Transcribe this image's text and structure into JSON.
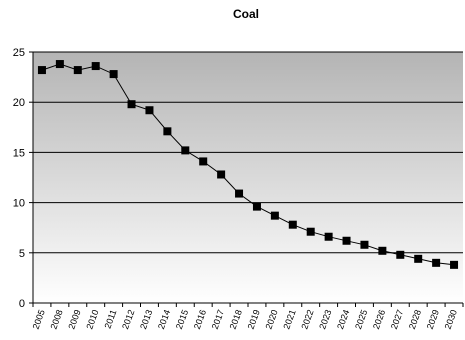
{
  "chart_data": {
    "type": "line",
    "title": "Coal",
    "xlabel": "",
    "ylabel": "",
    "ylim": [
      0,
      25
    ],
    "yticks": [
      "0",
      "5",
      "10",
      "15",
      "20",
      "25"
    ],
    "grid": true,
    "legend": "none",
    "colors": {
      "line": "#000000",
      "marker": "#000000",
      "gridline": "#000000",
      "background_top": "#b4b4b4",
      "background_bottom": "#ffffff"
    },
    "categories": [
      "2005",
      "2008",
      "2009",
      "2010",
      "2011",
      "2012",
      "2013",
      "2014",
      "2015",
      "2016",
      "2017",
      "2018",
      "2019",
      "2020",
      "2021",
      "2022",
      "2023",
      "2024",
      "2025",
      "2026",
      "2027",
      "2028",
      "2029",
      "2030"
    ],
    "series": [
      {
        "values": [
          23.2,
          23.8,
          23.2,
          23.6,
          22.8,
          19.8,
          19.2,
          17.1,
          15.2,
          14.1,
          12.8,
          10.9,
          9.6,
          8.7,
          7.8,
          7.1,
          6.6,
          6.2,
          5.8,
          5.2,
          4.8,
          4.4,
          4.0,
          3.8
        ]
      }
    ]
  }
}
